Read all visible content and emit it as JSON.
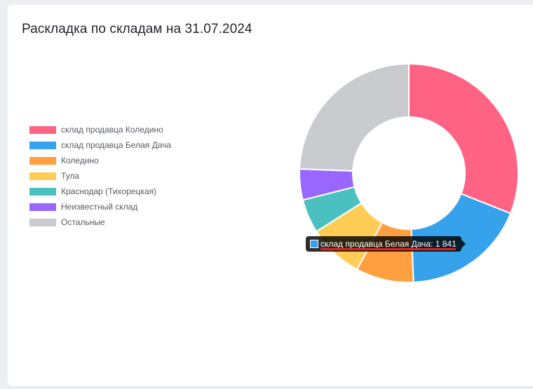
{
  "chart_data": {
    "type": "pie",
    "title": "Раскладка по складам на 31.07.2024",
    "categories": [
      "склад продавца Коледино",
      "склад продавца Белая Дача",
      "Коледино",
      "Тула",
      "Краснодар (Тихорецкая)",
      "Неизвестный склад",
      "Остальные"
    ],
    "values": [
      3114,
      1841,
      857,
      822,
      503,
      459,
      2450
    ],
    "colors": [
      "#ff6384",
      "#36a2eb",
      "#ff9f40",
      "#ffcd56",
      "#4bc0c0",
      "#9966ff",
      "#c9cbcf"
    ],
    "donut": true,
    "legend_position": "left"
  },
  "tooltip": {
    "label": "склад продавца Белая Дача",
    "value": "1 841",
    "color": "#36a2eb"
  }
}
